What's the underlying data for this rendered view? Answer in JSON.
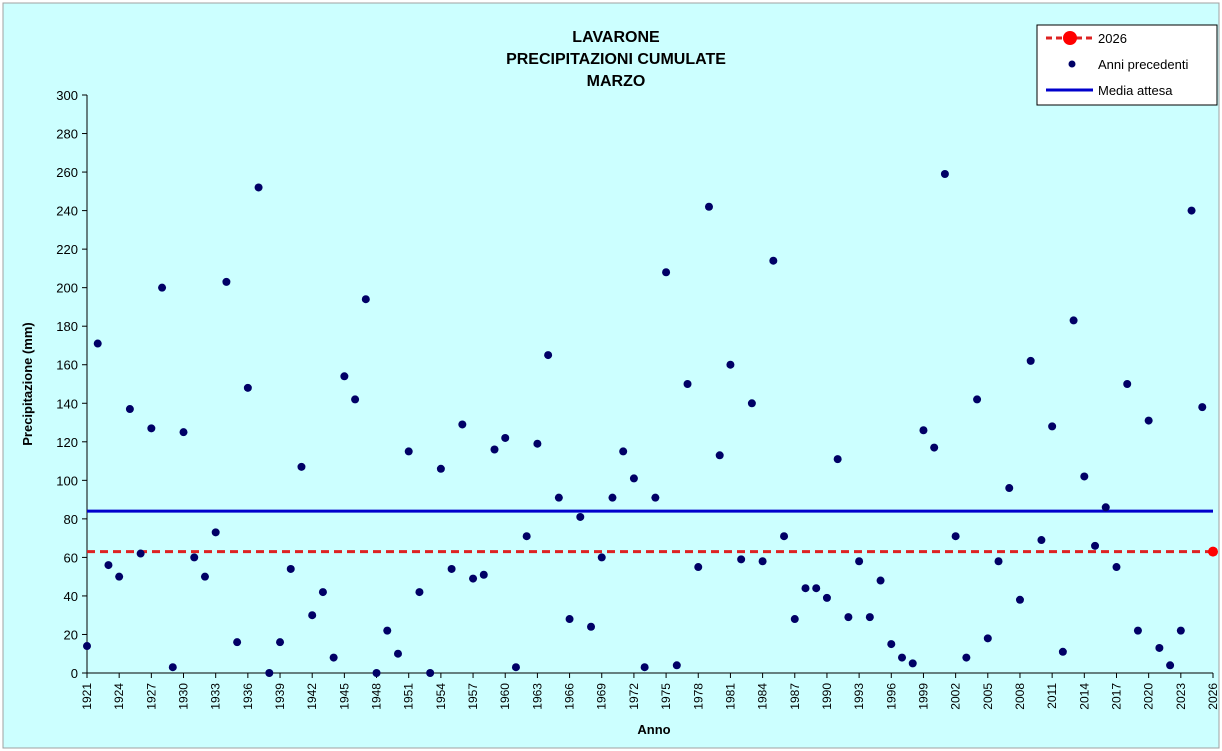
{
  "chart_data": {
    "type": "scatter",
    "title_lines": [
      "LAVARONE",
      "PRECIPITAZIONI CUMULATE",
      "MARZO"
    ],
    "xlabel": "Anno",
    "ylabel": "Precipitazione (mm)",
    "xlim": [
      1921,
      2026
    ],
    "ylim": [
      0,
      300
    ],
    "y_ticks": [
      "0",
      "20",
      "40",
      "60",
      "80",
      "100",
      "120",
      "140",
      "160",
      "180",
      "200",
      "220",
      "240",
      "260",
      "280",
      "300"
    ],
    "x_ticks": [
      "1921",
      "1924",
      "1927",
      "1930",
      "1933",
      "1936",
      "1939",
      "1942",
      "1945",
      "1948",
      "1951",
      "1954",
      "1957",
      "1960",
      "1963",
      "1966",
      "1969",
      "1972",
      "1975",
      "1978",
      "1981",
      "1984",
      "1987",
      "1990",
      "1993",
      "1996",
      "1999",
      "2002",
      "2005",
      "2008",
      "2011",
      "2014",
      "2017",
      "2020",
      "2023",
      "2026"
    ],
    "grid": false,
    "legend_position": "top-right",
    "colors": {
      "background": "#ccffff",
      "points": "#000066",
      "mean_line": "#0000cc",
      "current": "#ff0000",
      "current_line": "#dd2222"
    },
    "legend": {
      "current_label": "2026",
      "points_label": "Anni precedenti",
      "mean_label": "Media attesa"
    },
    "mean_value": 84,
    "current": {
      "x": 2026,
      "y": 63
    },
    "points": [
      {
        "x": 1921,
        "y": 14
      },
      {
        "x": 1922,
        "y": 171
      },
      {
        "x": 1923,
        "y": 56
      },
      {
        "x": 1924,
        "y": 50
      },
      {
        "x": 1925,
        "y": 137
      },
      {
        "x": 1926,
        "y": 62
      },
      {
        "x": 1927,
        "y": 127
      },
      {
        "x": 1928,
        "y": 200
      },
      {
        "x": 1929,
        "y": 3
      },
      {
        "x": 1930,
        "y": 125
      },
      {
        "x": 1931,
        "y": 60
      },
      {
        "x": 1932,
        "y": 50
      },
      {
        "x": 1933,
        "y": 73
      },
      {
        "x": 1934,
        "y": 203
      },
      {
        "x": 1935,
        "y": 16
      },
      {
        "x": 1936,
        "y": 148
      },
      {
        "x": 1937,
        "y": 252
      },
      {
        "x": 1938,
        "y": 0
      },
      {
        "x": 1939,
        "y": 16
      },
      {
        "x": 1940,
        "y": 54
      },
      {
        "x": 1941,
        "y": 107
      },
      {
        "x": 1942,
        "y": 30
      },
      {
        "x": 1943,
        "y": 42
      },
      {
        "x": 1944,
        "y": 8
      },
      {
        "x": 1945,
        "y": 154
      },
      {
        "x": 1946,
        "y": 142
      },
      {
        "x": 1947,
        "y": 194
      },
      {
        "x": 1948,
        "y": 0
      },
      {
        "x": 1949,
        "y": 22
      },
      {
        "x": 1950,
        "y": 10
      },
      {
        "x": 1951,
        "y": 115
      },
      {
        "x": 1952,
        "y": 42
      },
      {
        "x": 1953,
        "y": 0
      },
      {
        "x": 1954,
        "y": 106
      },
      {
        "x": 1955,
        "y": 54
      },
      {
        "x": 1956,
        "y": 129
      },
      {
        "x": 1957,
        "y": 49
      },
      {
        "x": 1958,
        "y": 51
      },
      {
        "x": 1959,
        "y": 116
      },
      {
        "x": 1960,
        "y": 122
      },
      {
        "x": 1961,
        "y": 3
      },
      {
        "x": 1962,
        "y": 71
      },
      {
        "x": 1963,
        "y": 119
      },
      {
        "x": 1964,
        "y": 165
      },
      {
        "x": 1965,
        "y": 91
      },
      {
        "x": 1966,
        "y": 28
      },
      {
        "x": 1967,
        "y": 81
      },
      {
        "x": 1968,
        "y": 24
      },
      {
        "x": 1969,
        "y": 60
      },
      {
        "x": 1970,
        "y": 91
      },
      {
        "x": 1971,
        "y": 115
      },
      {
        "x": 1972,
        "y": 101
      },
      {
        "x": 1973,
        "y": 3
      },
      {
        "x": 1974,
        "y": 91
      },
      {
        "x": 1975,
        "y": 208
      },
      {
        "x": 1976,
        "y": 4
      },
      {
        "x": 1977,
        "y": 150
      },
      {
        "x": 1978,
        "y": 55
      },
      {
        "x": 1979,
        "y": 242
      },
      {
        "x": 1980,
        "y": 113
      },
      {
        "x": 1981,
        "y": 160
      },
      {
        "x": 1982,
        "y": 59
      },
      {
        "x": 1983,
        "y": 140
      },
      {
        "x": 1984,
        "y": 58
      },
      {
        "x": 1985,
        "y": 214
      },
      {
        "x": 1986,
        "y": 71
      },
      {
        "x": 1987,
        "y": 28
      },
      {
        "x": 1988,
        "y": 44
      },
      {
        "x": 1989,
        "y": 44
      },
      {
        "x": 1990,
        "y": 39
      },
      {
        "x": 1991,
        "y": 111
      },
      {
        "x": 1992,
        "y": 29
      },
      {
        "x": 1993,
        "y": 58
      },
      {
        "x": 1994,
        "y": 29
      },
      {
        "x": 1995,
        "y": 48
      },
      {
        "x": 1996,
        "y": 15
      },
      {
        "x": 1997,
        "y": 8
      },
      {
        "x": 1998,
        "y": 5
      },
      {
        "x": 1999,
        "y": 126
      },
      {
        "x": 2000,
        "y": 117
      },
      {
        "x": 2001,
        "y": 259
      },
      {
        "x": 2002,
        "y": 71
      },
      {
        "x": 2003,
        "y": 8
      },
      {
        "x": 2004,
        "y": 142
      },
      {
        "x": 2005,
        "y": 18
      },
      {
        "x": 2006,
        "y": 58
      },
      {
        "x": 2007,
        "y": 96
      },
      {
        "x": 2008,
        "y": 38
      },
      {
        "x": 2009,
        "y": 162
      },
      {
        "x": 2010,
        "y": 69
      },
      {
        "x": 2011,
        "y": 128
      },
      {
        "x": 2012,
        "y": 11
      },
      {
        "x": 2013,
        "y": 183
      },
      {
        "x": 2014,
        "y": 102
      },
      {
        "x": 2015,
        "y": 66
      },
      {
        "x": 2016,
        "y": 86
      },
      {
        "x": 2017,
        "y": 55
      },
      {
        "x": 2018,
        "y": 150
      },
      {
        "x": 2019,
        "y": 22
      },
      {
        "x": 2020,
        "y": 131
      },
      {
        "x": 2021,
        "y": 13
      },
      {
        "x": 2022,
        "y": 4
      },
      {
        "x": 2023,
        "y": 22
      },
      {
        "x": 2024,
        "y": 240
      },
      {
        "x": 2025,
        "y": 138
      }
    ]
  }
}
